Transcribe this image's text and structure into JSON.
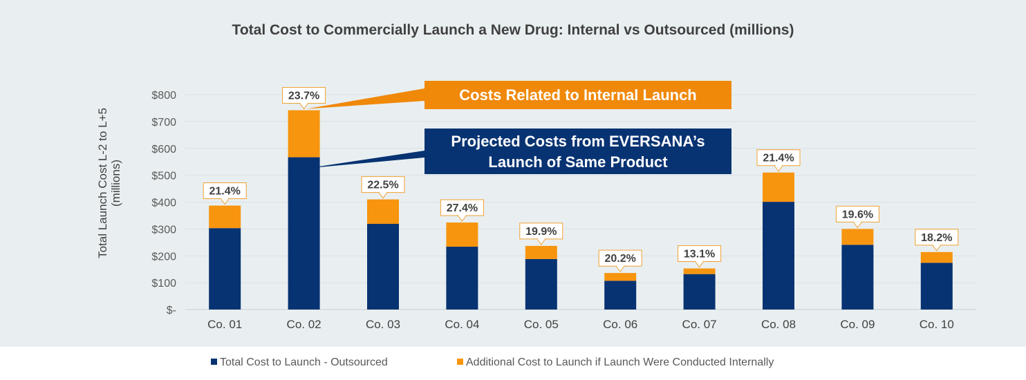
{
  "chart_data": {
    "type": "bar",
    "stacked": true,
    "title": "Total Cost to Commercially Launch a New Drug: Internal vs Outsourced (millions)",
    "ylabel_lines": [
      "Total Launch Cost L-2 to L+5",
      "(millions)"
    ],
    "xlabel": "",
    "ylim": [
      0,
      800
    ],
    "yticks": [
      0,
      100,
      200,
      300,
      400,
      500,
      600,
      700,
      800
    ],
    "ytick_labels": [
      "$-",
      "$100",
      "$200",
      "$300",
      "$400",
      "$500",
      "$600",
      "$700",
      "$800"
    ],
    "grid": true,
    "categories": [
      "Co. 01",
      "Co. 02",
      "Co. 03",
      "Co. 04",
      "Co. 05",
      "Co. 06",
      "Co. 07",
      "Co. 08",
      "Co. 09",
      "Co. 10"
    ],
    "series": [
      {
        "name": "Total Cost to Launch - Outsourced",
        "color": "#083372",
        "values": [
          303,
          567,
          319,
          234,
          188,
          107,
          132,
          401,
          241,
          174
        ]
      },
      {
        "name": "Additional Cost to Launch if Launch Were Conducted Internally",
        "color": "#f7950f",
        "values": [
          84,
          175,
          91,
          90,
          49,
          29,
          21,
          109,
          59,
          40
        ]
      }
    ],
    "data_labels": [
      "21.4%",
      "23.7%",
      "22.5%",
      "27.4%",
      "19.9%",
      "20.2%",
      "13.1%",
      "21.4%",
      "19.6%",
      "18.2%"
    ],
    "annotations": [
      {
        "text": "Costs Related to Internal Launch",
        "target_category": "Co. 02",
        "target_series": "Additional Cost to Launch if Launch Were Conducted Internally"
      },
      {
        "text_lines": [
          "Projected Costs from EVERSANA’s",
          "Launch of Same Product"
        ],
        "target_category": "Co. 02",
        "target_series": "Total Cost to Launch - Outsourced"
      }
    ],
    "legend_position": "bottom"
  },
  "colors": {
    "outsourced": "#083372",
    "internal": "#f7950f",
    "callout_internal": "#f0880a",
    "callout_outsourced": "#083372",
    "panel_bg": "#e9eff1",
    "label_border": "#f0a030"
  }
}
